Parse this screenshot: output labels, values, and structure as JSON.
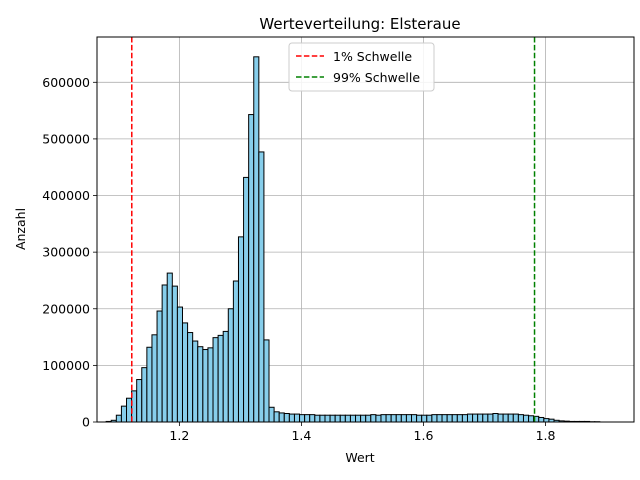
{
  "chart_data": {
    "type": "bar",
    "title": "Werteverteilung: Elsteraue",
    "xlabel": "Wert",
    "ylabel": "Anzahl",
    "xlim": [
      1.065,
      1.945
    ],
    "ylim": [
      0,
      680000
    ],
    "xticks": [
      1.2,
      1.4,
      1.6,
      1.8
    ],
    "xtick_labels": [
      "1.2",
      "1.4",
      "1.6",
      "1.8"
    ],
    "yticks": [
      0,
      100000,
      200000,
      300000,
      400000,
      500000,
      600000
    ],
    "ytick_labels": [
      "0",
      "100000",
      "200000",
      "300000",
      "400000",
      "500000",
      "600000"
    ],
    "grid": true,
    "bar_color": "#87ceeb",
    "bar_edge_color": "#000000",
    "bins": {
      "start": 1.08,
      "width": 0.00834,
      "counts": [
        1000,
        3000,
        12000,
        28000,
        42000,
        55000,
        75000,
        96000,
        132000,
        154000,
        196000,
        242000,
        263000,
        240000,
        203000,
        175000,
        158000,
        143000,
        133000,
        128000,
        131000,
        149000,
        153000,
        160000,
        200000,
        249000,
        327000,
        432000,
        543000,
        645000,
        477000,
        145000,
        26000,
        18000,
        16000,
        15000,
        14000,
        14000,
        13000,
        13000,
        13000,
        12000,
        12000,
        12000,
        12000,
        12000,
        12000,
        12000,
        12000,
        12000,
        12000,
        12000,
        13000,
        12000,
        13000,
        13000,
        13000,
        13000,
        13000,
        13000,
        13000,
        12000,
        12000,
        12000,
        13000,
        13000,
        13000,
        13000,
        13000,
        13000,
        13000,
        14000,
        14000,
        14000,
        14000,
        14000,
        15000,
        14000,
        14000,
        14000,
        14000,
        13000,
        12000,
        11000,
        10000,
        8000,
        6000,
        5000,
        3000,
        2000,
        1500,
        1000,
        1000,
        1000,
        1000,
        500,
        500
      ]
    },
    "threshold_lines": [
      {
        "name": "1% Schwelle",
        "x": 1.122,
        "color": "#ff0000",
        "style": "dashed"
      },
      {
        "name": "99% Schwelle",
        "x": 1.782,
        "color": "#008000",
        "style": "dashed"
      }
    ],
    "legend_position": "upper center"
  }
}
